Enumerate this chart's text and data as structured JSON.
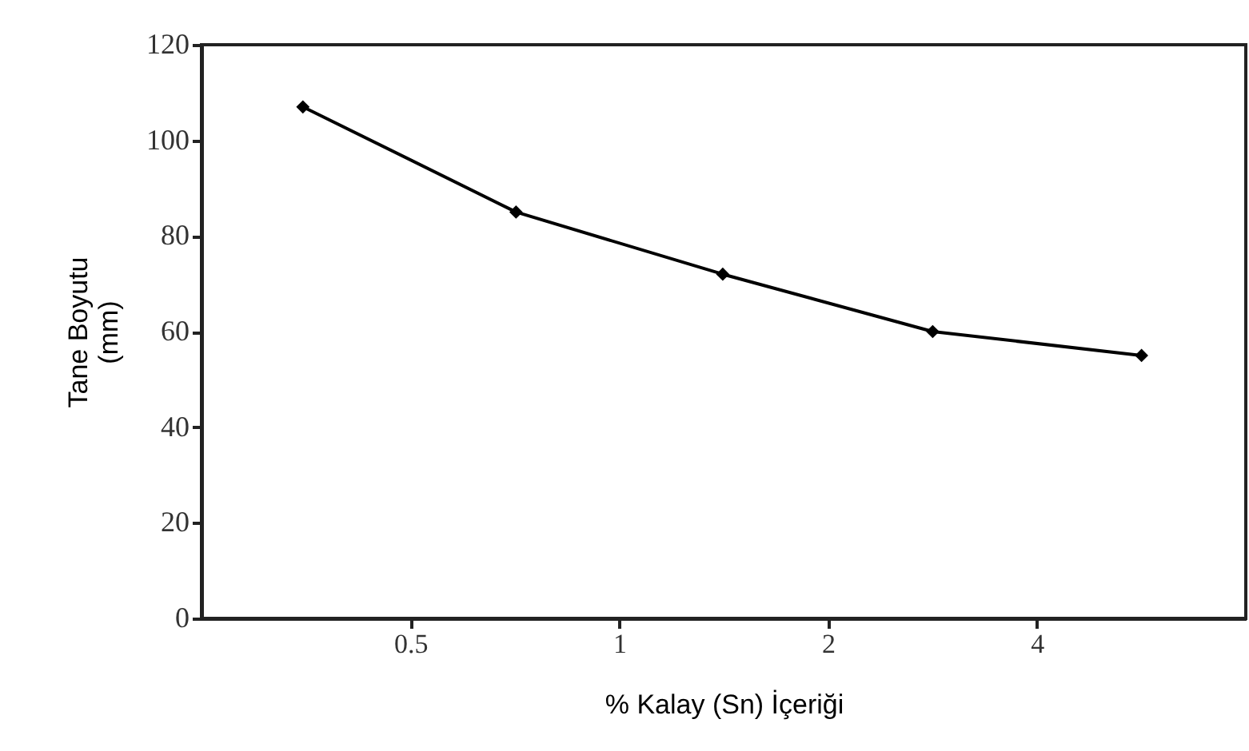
{
  "chart_data": {
    "type": "line",
    "xlabel": "% Kalay (Sn) İçeriği",
    "ylabel": "Tane Boyutu\n(mm)",
    "x": [
      0.35,
      0.71,
      1.41,
      2.83,
      5.66
    ],
    "series": [
      {
        "color": "#000000",
        "values": [
          107,
          85,
          72,
          60,
          55
        ]
      }
    ],
    "log": "x",
    "xlim": [
      0.25,
      8
    ],
    "xticks": [
      0.5,
      1,
      2,
      4
    ],
    "ylim": [
      0,
      120
    ],
    "yticks": [
      0,
      20,
      40,
      60,
      80,
      100,
      120
    ],
    "grid": false,
    "marker": "diamond",
    "line_style": "solid"
  }
}
